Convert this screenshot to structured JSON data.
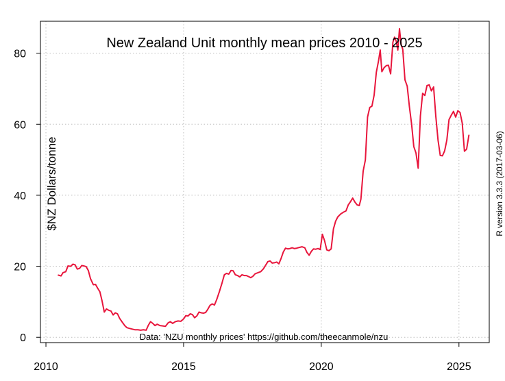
{
  "chart_data": {
    "type": "line",
    "title": "New Zealand Unit monthly mean prices 2010 - 2025",
    "ylabel": "$NZ Dollars/tonne",
    "xlabel": "",
    "caption": "Data: 'NZU monthly prices' https://github.com/theecanmole/nzu",
    "side_note": "R version 3.3.3 (2017-03-06)",
    "xlim": [
      2009.8,
      2026.1
    ],
    "ylim": [
      -1.5,
      89
    ],
    "x_ticks": [
      2010,
      2015,
      2020,
      2025
    ],
    "y_ticks": [
      0,
      20,
      40,
      60,
      80
    ],
    "grid": true,
    "line_color": "#e8163c",
    "series": [
      {
        "points": [
          [
            2010.45,
            17.5
          ],
          [
            2010.55,
            17.3
          ],
          [
            2010.62,
            18.2
          ],
          [
            2010.72,
            18.5
          ],
          [
            2010.8,
            20.1
          ],
          [
            2010.9,
            20.0
          ],
          [
            2010.98,
            20.6
          ],
          [
            2011.06,
            20.4
          ],
          [
            2011.14,
            19.2
          ],
          [
            2011.22,
            19.4
          ],
          [
            2011.3,
            20.2
          ],
          [
            2011.38,
            20.1
          ],
          [
            2011.46,
            19.9
          ],
          [
            2011.54,
            18.8
          ],
          [
            2011.62,
            16.5
          ],
          [
            2011.72,
            14.8
          ],
          [
            2011.8,
            14.9
          ],
          [
            2011.88,
            13.8
          ],
          [
            2011.96,
            12.8
          ],
          [
            2012.04,
            10.2
          ],
          [
            2012.12,
            7.1
          ],
          [
            2012.2,
            8.0
          ],
          [
            2012.28,
            7.6
          ],
          [
            2012.36,
            7.4
          ],
          [
            2012.44,
            6.3
          ],
          [
            2012.52,
            6.9
          ],
          [
            2012.6,
            6.6
          ],
          [
            2012.68,
            5.3
          ],
          [
            2012.78,
            4.2
          ],
          [
            2012.86,
            3.3
          ],
          [
            2012.94,
            2.7
          ],
          [
            2013.04,
            2.5
          ],
          [
            2013.14,
            2.3
          ],
          [
            2013.24,
            2.1
          ],
          [
            2013.34,
            2.1
          ],
          [
            2013.44,
            2.0
          ],
          [
            2013.54,
            2.1
          ],
          [
            2013.64,
            2.0
          ],
          [
            2013.72,
            3.4
          ],
          [
            2013.8,
            4.4
          ],
          [
            2013.88,
            3.9
          ],
          [
            2013.96,
            3.3
          ],
          [
            2014.04,
            3.7
          ],
          [
            2014.14,
            3.3
          ],
          [
            2014.24,
            3.2
          ],
          [
            2014.34,
            3.1
          ],
          [
            2014.44,
            4.1
          ],
          [
            2014.52,
            4.4
          ],
          [
            2014.6,
            3.9
          ],
          [
            2014.7,
            4.4
          ],
          [
            2014.8,
            4.6
          ],
          [
            2014.9,
            4.5
          ],
          [
            2015.0,
            5.2
          ],
          [
            2015.08,
            6.1
          ],
          [
            2015.16,
            6.0
          ],
          [
            2015.24,
            6.6
          ],
          [
            2015.32,
            6.4
          ],
          [
            2015.4,
            5.5
          ],
          [
            2015.48,
            6.0
          ],
          [
            2015.56,
            7.1
          ],
          [
            2015.64,
            6.9
          ],
          [
            2015.72,
            6.8
          ],
          [
            2015.8,
            7.0
          ],
          [
            2015.88,
            7.9
          ],
          [
            2015.96,
            9.0
          ],
          [
            2016.04,
            9.4
          ],
          [
            2016.12,
            9.1
          ],
          [
            2016.2,
            10.6
          ],
          [
            2016.3,
            12.9
          ],
          [
            2016.4,
            15.4
          ],
          [
            2016.48,
            17.6
          ],
          [
            2016.56,
            18.0
          ],
          [
            2016.64,
            17.8
          ],
          [
            2016.72,
            18.8
          ],
          [
            2016.8,
            18.7
          ],
          [
            2016.88,
            17.6
          ],
          [
            2016.96,
            17.4
          ],
          [
            2017.04,
            17.0
          ],
          [
            2017.12,
            17.6
          ],
          [
            2017.2,
            17.4
          ],
          [
            2017.28,
            17.4
          ],
          [
            2017.36,
            17.1
          ],
          [
            2017.44,
            16.8
          ],
          [
            2017.52,
            17.2
          ],
          [
            2017.6,
            17.9
          ],
          [
            2017.7,
            18.2
          ],
          [
            2017.8,
            18.5
          ],
          [
            2017.9,
            19.3
          ],
          [
            2017.98,
            20.3
          ],
          [
            2018.06,
            21.3
          ],
          [
            2018.14,
            21.5
          ],
          [
            2018.22,
            20.9
          ],
          [
            2018.3,
            21.0
          ],
          [
            2018.38,
            21.2
          ],
          [
            2018.46,
            20.7
          ],
          [
            2018.54,
            22.2
          ],
          [
            2018.62,
            24.0
          ],
          [
            2018.7,
            25.1
          ],
          [
            2018.78,
            24.9
          ],
          [
            2018.86,
            25.0
          ],
          [
            2018.94,
            25.2
          ],
          [
            2019.02,
            25.0
          ],
          [
            2019.1,
            25.1
          ],
          [
            2019.2,
            25.3
          ],
          [
            2019.3,
            25.5
          ],
          [
            2019.4,
            25.2
          ],
          [
            2019.48,
            23.9
          ],
          [
            2019.56,
            23.1
          ],
          [
            2019.64,
            24.2
          ],
          [
            2019.72,
            24.9
          ],
          [
            2019.8,
            24.8
          ],
          [
            2019.88,
            25.0
          ],
          [
            2019.96,
            24.7
          ],
          [
            2020.04,
            29.0
          ],
          [
            2020.12,
            27.2
          ],
          [
            2020.2,
            24.6
          ],
          [
            2020.28,
            24.4
          ],
          [
            2020.36,
            24.9
          ],
          [
            2020.44,
            30.5
          ],
          [
            2020.52,
            32.7
          ],
          [
            2020.6,
            33.9
          ],
          [
            2020.7,
            34.7
          ],
          [
            2020.8,
            35.2
          ],
          [
            2020.9,
            35.6
          ],
          [
            2020.98,
            37.3
          ],
          [
            2021.06,
            38.2
          ],
          [
            2021.14,
            39.2
          ],
          [
            2021.22,
            38.1
          ],
          [
            2021.3,
            37.3
          ],
          [
            2021.38,
            37.1
          ],
          [
            2021.44,
            38.9
          ],
          [
            2021.52,
            46.8
          ],
          [
            2021.6,
            49.9
          ],
          [
            2021.68,
            62.0
          ],
          [
            2021.76,
            64.7
          ],
          [
            2021.84,
            65.1
          ],
          [
            2021.92,
            68.2
          ],
          [
            2022.0,
            74.6
          ],
          [
            2022.08,
            77.9
          ],
          [
            2022.14,
            80.9
          ],
          [
            2022.2,
            74.8
          ],
          [
            2022.28,
            75.9
          ],
          [
            2022.36,
            76.5
          ],
          [
            2022.44,
            76.6
          ],
          [
            2022.52,
            74.2
          ],
          [
            2022.6,
            83.1
          ],
          [
            2022.66,
            84.5
          ],
          [
            2022.72,
            83.4
          ],
          [
            2022.78,
            80.9
          ],
          [
            2022.84,
            86.9
          ],
          [
            2022.9,
            82.4
          ],
          [
            2022.96,
            81.1
          ],
          [
            2023.04,
            72.5
          ],
          [
            2023.12,
            70.7
          ],
          [
            2023.2,
            64.9
          ],
          [
            2023.28,
            60.0
          ],
          [
            2023.36,
            53.7
          ],
          [
            2023.44,
            51.9
          ],
          [
            2023.52,
            47.6
          ],
          [
            2023.6,
            62.3
          ],
          [
            2023.68,
            68.7
          ],
          [
            2023.76,
            68.1
          ],
          [
            2023.84,
            70.9
          ],
          [
            2023.92,
            71.1
          ],
          [
            2024.0,
            69.4
          ],
          [
            2024.08,
            70.5
          ],
          [
            2024.16,
            62.3
          ],
          [
            2024.24,
            55.5
          ],
          [
            2024.32,
            51.2
          ],
          [
            2024.4,
            51.1
          ],
          [
            2024.48,
            52.5
          ],
          [
            2024.56,
            55.5
          ],
          [
            2024.64,
            61.3
          ],
          [
            2024.72,
            62.5
          ],
          [
            2024.8,
            63.6
          ],
          [
            2024.88,
            62.0
          ],
          [
            2024.96,
            63.8
          ],
          [
            2025.04,
            63.3
          ],
          [
            2025.12,
            60.3
          ],
          [
            2025.2,
            52.4
          ],
          [
            2025.28,
            53.0
          ],
          [
            2025.36,
            56.9
          ]
        ]
      }
    ]
  }
}
